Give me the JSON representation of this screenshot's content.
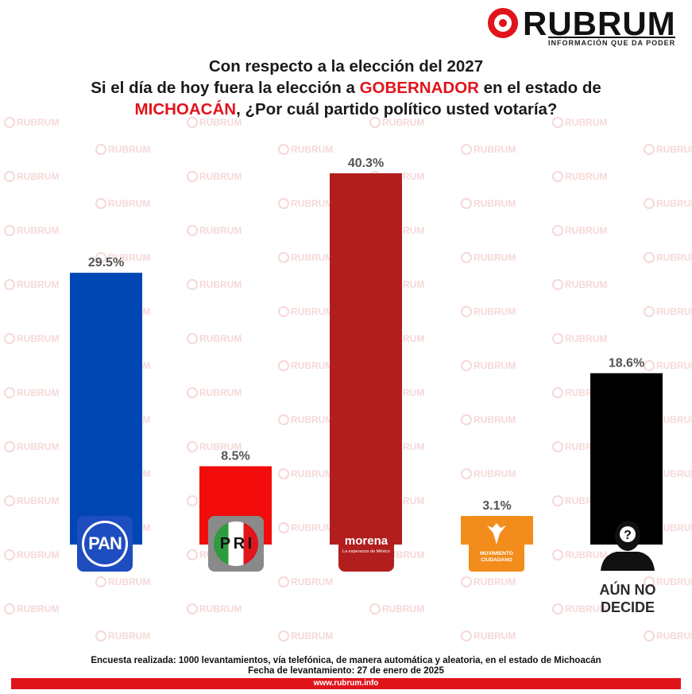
{
  "brand": {
    "name": "RUBRUM",
    "tagline": "INFORMACIÓN QUE DA PODER",
    "url": "www.rubrum.info",
    "watermark": "RUBRUM",
    "accent": "#e0141b"
  },
  "chart_data": {
    "type": "bar",
    "title": {
      "line1": "Con respecto a la elección del 2027",
      "line2_pre": "Si el día de hoy fuera la elección a ",
      "line2_red": "GOBERNADOR",
      "line2_post": " en el estado de",
      "line3_red": "MICHOACÁN",
      "line3_post": ", ¿Por cuál partido político usted votaría?"
    },
    "categories": [
      "PAN",
      "PRI",
      "morena",
      "MOVIMIENTO CIUDADANO",
      "AÚN NO DECIDE"
    ],
    "values": [
      29.5,
      8.5,
      40.3,
      3.1,
      18.6
    ],
    "value_labels": [
      "29.5%",
      "8.5%",
      "40.3%",
      "3.1%",
      "18.6%"
    ],
    "colors": [
      "#0047b3",
      "#f20c0c",
      "#b21e1e",
      "#f28c1a",
      "#000000"
    ],
    "ylim": [
      0,
      42
    ],
    "grid": false,
    "legend": "none"
  },
  "logos": {
    "pan": "PAN",
    "pri_letters": [
      "P",
      "R",
      "I"
    ],
    "morena": "morena",
    "morena_sub": "La esperanza de México",
    "mc_line1": "MOVIMIENTO",
    "mc_line2": "CIUDADANO",
    "undecided_symbol": "?",
    "undecided_line1": "AÚN NO",
    "undecided_line2": "DECIDE"
  },
  "footer": {
    "method": "Encuesta realizada: 1000 levantamientos, vía telefónica, de manera automática y aleatoria, en el estado de Michoacán",
    "date": "Fecha de levantamiento: 27 de enero de 2025"
  }
}
